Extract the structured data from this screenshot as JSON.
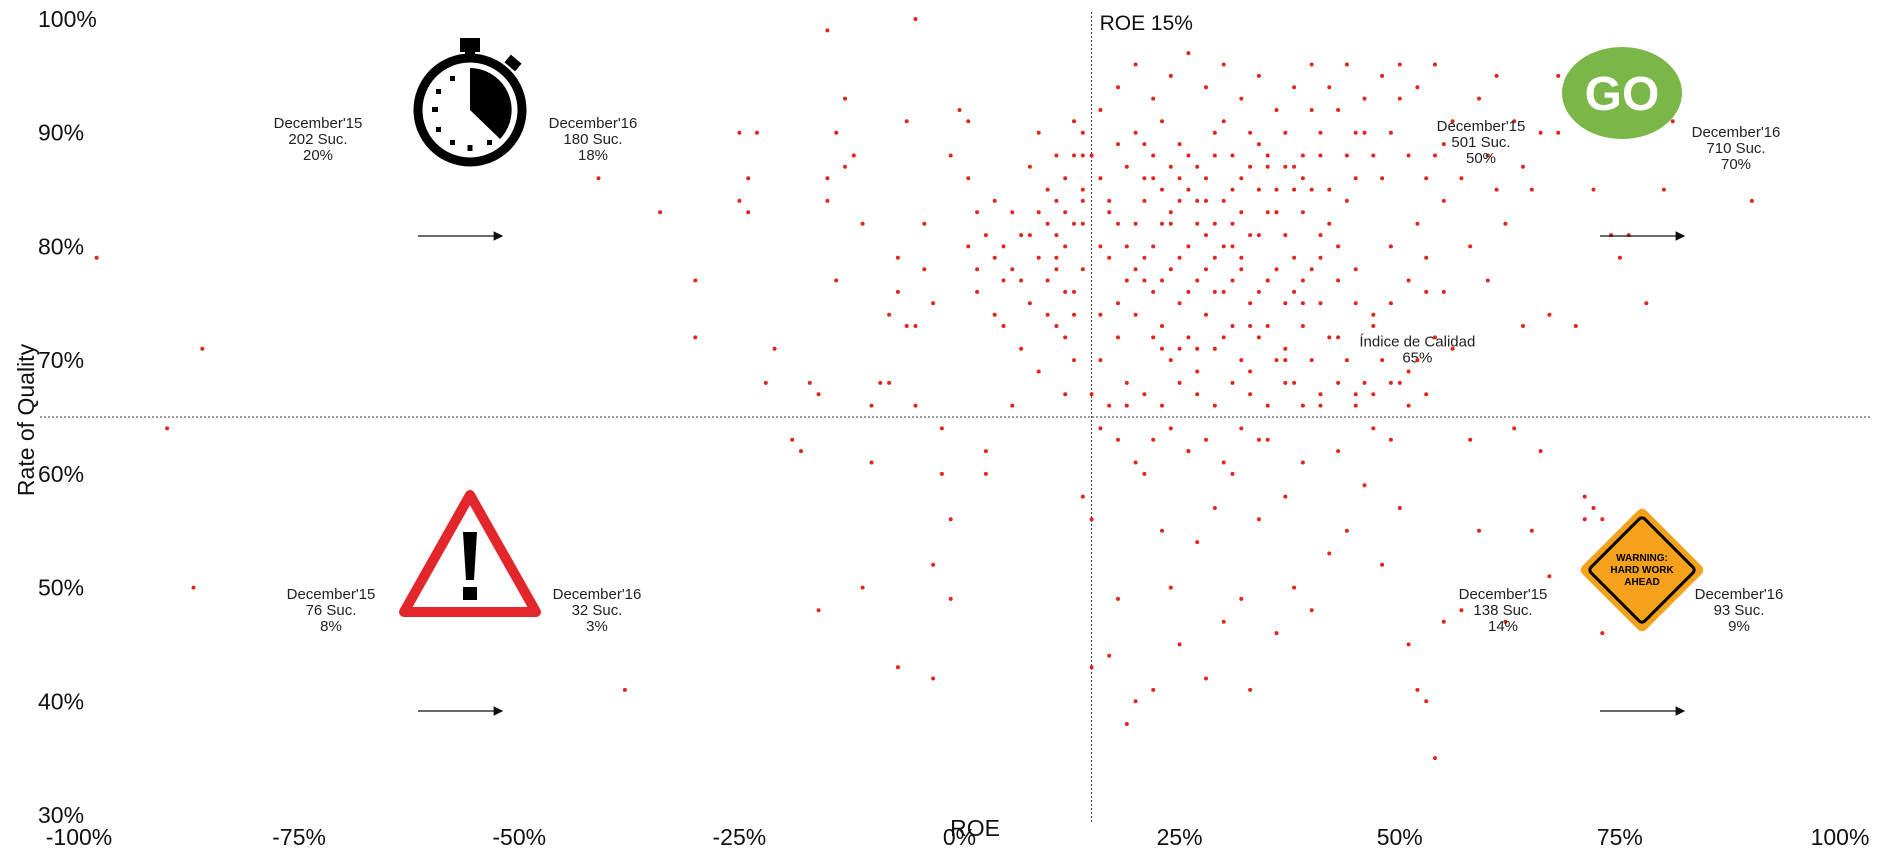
{
  "chart_data": {
    "type": "scatter",
    "xlabel": "ROE",
    "ylabel": "Rate of Quality",
    "xlim": [
      -100,
      100
    ],
    "ylim": [
      30,
      100
    ],
    "x_ticks": [
      "-100%",
      "-75%",
      "-50%",
      "-25%",
      "0%",
      "25%",
      "50%",
      "75%",
      "100%"
    ],
    "x_tick_values": [
      -100,
      -75,
      -50,
      -25,
      0,
      25,
      50,
      75,
      100
    ],
    "y_ticks": [
      "30%",
      "40%",
      "50%",
      "60%",
      "70%",
      "80%",
      "90%",
      "100%"
    ],
    "y_tick_values": [
      30,
      40,
      50,
      60,
      70,
      80,
      90,
      100
    ],
    "grid": false,
    "point_color": "#e0261e",
    "reference_lines": {
      "vertical": {
        "x": 15,
        "label": "ROE 15%"
      },
      "horizontal": {
        "y": 65,
        "label_line1": "Índice de Calidad",
        "label_line2": "65%"
      }
    },
    "quadrants": {
      "top_left": {
        "icon": "stopwatch-icon",
        "before": [
          "December'15",
          "202 Suc.",
          "20%"
        ],
        "after": [
          "December'16",
          "180 Suc.",
          "18%"
        ]
      },
      "top_right": {
        "icon": "go-badge-icon",
        "icon_text": "GO",
        "icon_color": "#7ab648",
        "before": [
          "December'15",
          "501 Suc.",
          "50%"
        ],
        "after": [
          "December'16",
          "710 Suc.",
          "70%"
        ]
      },
      "bottom_left": {
        "icon": "warning-triangle-icon",
        "icon_color": "#e3262b",
        "before": [
          "December'15",
          "76 Suc.",
          "8%"
        ],
        "after": [
          "December'16",
          "32 Suc.",
          "3%"
        ]
      },
      "bottom_right": {
        "icon": "roadwork-sign-icon",
        "icon_text": [
          "WARNING:",
          "HARD WORK",
          "AHEAD"
        ],
        "icon_color": "#f5a11c",
        "before": [
          "December'15",
          "138 Suc.",
          "14%"
        ],
        "after": [
          "December'16",
          "93 Suc.",
          "9%"
        ]
      }
    },
    "points": [
      [
        -98,
        79
      ],
      [
        -86,
        71
      ],
      [
        -90,
        64
      ],
      [
        -87,
        50
      ],
      [
        -38,
        41
      ],
      [
        -30,
        77
      ],
      [
        -30,
        72
      ],
      [
        -34,
        83
      ],
      [
        -41,
        86
      ],
      [
        -25,
        90
      ],
      [
        -24,
        86
      ],
      [
        -25,
        84
      ],
      [
        -24,
        83
      ],
      [
        -23,
        90
      ],
      [
        -22,
        68
      ],
      [
        -21,
        71
      ],
      [
        -18,
        62
      ],
      [
        -19,
        63
      ],
      [
        -17,
        68
      ],
      [
        -16,
        67
      ],
      [
        -15,
        86
      ],
      [
        -15,
        84
      ],
      [
        -14,
        90
      ],
      [
        -14,
        77
      ],
      [
        -13,
        87
      ],
      [
        -12,
        88
      ],
      [
        -11,
        82
      ],
      [
        -10,
        66
      ],
      [
        -10,
        61
      ],
      [
        -9,
        68
      ],
      [
        -8,
        74
      ],
      [
        -8,
        68
      ],
      [
        -7,
        79
      ],
      [
        -7,
        76
      ],
      [
        -6,
        91
      ],
      [
        -6,
        73
      ],
      [
        -5,
        73
      ],
      [
        -5,
        66
      ],
      [
        -4,
        82
      ],
      [
        -4,
        78
      ],
      [
        -3,
        75
      ],
      [
        -3,
        52
      ],
      [
        -2,
        64
      ],
      [
        -2,
        60
      ],
      [
        -1,
        56
      ],
      [
        -1,
        49
      ],
      [
        -7,
        43
      ],
      [
        -3,
        42
      ],
      [
        -5,
        100
      ],
      [
        -15,
        99
      ],
      [
        -11,
        50
      ],
      [
        -16,
        48
      ],
      [
        -13,
        93
      ],
      [
        -1,
        88
      ],
      [
        0,
        92
      ],
      [
        1,
        91
      ],
      [
        1,
        86
      ],
      [
        2,
        83
      ],
      [
        2,
        76
      ],
      [
        3,
        62
      ],
      [
        3,
        60
      ],
      [
        4,
        84
      ],
      [
        4,
        74
      ],
      [
        5,
        80
      ],
      [
        5,
        73
      ],
      [
        6,
        78
      ],
      [
        6,
        66
      ],
      [
        7,
        77
      ],
      [
        7,
        71
      ],
      [
        8,
        87
      ],
      [
        8,
        81
      ],
      [
        9,
        90
      ],
      [
        9,
        69
      ],
      [
        10,
        85
      ],
      [
        10,
        74
      ],
      [
        11,
        88
      ],
      [
        11,
        79
      ],
      [
        12,
        72
      ],
      [
        12,
        67
      ],
      [
        13,
        91
      ],
      [
        13,
        76
      ],
      [
        14,
        84
      ],
      [
        14,
        58
      ],
      [
        15,
        56
      ],
      [
        15,
        43
      ],
      [
        16,
        80
      ],
      [
        16,
        70
      ],
      [
        17,
        83
      ],
      [
        17,
        44
      ],
      [
        18,
        75
      ],
      [
        18,
        49
      ],
      [
        19,
        66
      ],
      [
        19,
        38
      ],
      [
        20,
        90
      ],
      [
        20,
        40
      ],
      [
        21,
        77
      ],
      [
        21,
        60
      ],
      [
        22,
        86
      ],
      [
        22,
        41
      ],
      [
        23,
        73
      ],
      [
        23,
        55
      ],
      [
        24,
        82
      ],
      [
        24,
        50
      ],
      [
        25,
        79
      ],
      [
        25,
        45
      ],
      [
        26,
        88
      ],
      [
        26,
        62
      ],
      [
        27,
        71
      ],
      [
        27,
        54
      ],
      [
        28,
        84
      ],
      [
        28,
        42
      ],
      [
        29,
        76
      ],
      [
        29,
        57
      ],
      [
        30,
        91
      ],
      [
        30,
        47
      ],
      [
        31,
        80
      ],
      [
        31,
        60
      ],
      [
        32,
        86
      ],
      [
        32,
        49
      ],
      [
        33,
        73
      ],
      [
        33,
        41
      ],
      [
        34,
        89
      ],
      [
        34,
        56
      ],
      [
        35,
        77
      ],
      [
        35,
        63
      ],
      [
        36,
        83
      ],
      [
        36,
        46
      ],
      [
        37,
        70
      ],
      [
        37,
        58
      ],
      [
        38,
        87
      ],
      [
        38,
        50
      ],
      [
        39,
        75
      ],
      [
        39,
        61
      ],
      [
        40,
        92
      ],
      [
        40,
        48
      ],
      [
        41,
        81
      ],
      [
        41,
        66
      ],
      [
        42,
        85
      ],
      [
        42,
        53
      ],
      [
        43,
        72
      ],
      [
        43,
        62
      ],
      [
        44,
        88
      ],
      [
        44,
        55
      ],
      [
        45,
        78
      ],
      [
        45,
        67
      ],
      [
        46,
        90
      ],
      [
        46,
        59
      ],
      [
        47,
        74
      ],
      [
        47,
        64
      ],
      [
        48,
        86
      ],
      [
        48,
        52
      ],
      [
        49,
        80
      ],
      [
        49,
        63
      ],
      [
        50,
        93
      ],
      [
        50,
        57
      ],
      [
        51,
        69
      ],
      [
        51,
        45
      ],
      [
        52,
        82
      ],
      [
        52,
        41
      ],
      [
        53,
        76
      ],
      [
        53,
        40
      ],
      [
        54,
        88
      ],
      [
        54,
        35
      ],
      [
        55,
        84
      ],
      [
        55,
        47
      ],
      [
        56,
        91
      ],
      [
        56,
        71
      ],
      [
        57,
        86
      ],
      [
        57,
        48
      ],
      [
        58,
        80
      ],
      [
        58,
        63
      ],
      [
        59,
        93
      ],
      [
        59,
        55
      ],
      [
        60,
        88
      ],
      [
        60,
        77
      ],
      [
        61,
        95
      ],
      [
        61,
        85
      ],
      [
        62,
        82
      ],
      [
        62,
        47
      ],
      [
        63,
        91
      ],
      [
        63,
        64
      ],
      [
        64,
        87
      ],
      [
        64,
        73
      ],
      [
        65,
        85
      ],
      [
        65,
        55
      ],
      [
        66,
        90
      ],
      [
        66,
        62
      ],
      [
        67,
        74
      ],
      [
        67,
        51
      ],
      [
        68,
        90
      ],
      [
        70,
        73
      ],
      [
        71,
        56
      ],
      [
        72,
        85
      ],
      [
        73,
        46
      ],
      [
        74,
        81
      ],
      [
        75,
        79
      ],
      [
        76,
        81
      ],
      [
        78,
        75
      ],
      [
        80,
        85
      ],
      [
        81,
        91
      ],
      [
        90,
        84
      ],
      [
        68,
        95
      ],
      [
        71,
        58
      ],
      [
        73,
        56
      ],
      [
        75,
        53
      ],
      [
        77,
        50
      ],
      [
        72,
        57
      ],
      [
        10,
        82
      ],
      [
        11,
        84
      ],
      [
        12,
        86
      ],
      [
        13,
        88
      ],
      [
        14,
        90
      ],
      [
        12,
        80
      ],
      [
        11,
        78
      ],
      [
        13,
        82
      ],
      [
        14,
        85
      ],
      [
        15,
        88
      ],
      [
        16,
        86
      ],
      [
        17,
        84
      ],
      [
        18,
        82
      ],
      [
        19,
        80
      ],
      [
        20,
        78
      ],
      [
        21,
        84
      ],
      [
        22,
        88
      ],
      [
        23,
        85
      ],
      [
        24,
        87
      ],
      [
        25,
        84
      ],
      [
        26,
        80
      ],
      [
        27,
        82
      ],
      [
        28,
        86
      ],
      [
        29,
        88
      ],
      [
        30,
        84
      ],
      [
        31,
        82
      ],
      [
        32,
        79
      ],
      [
        33,
        81
      ],
      [
        34,
        85
      ],
      [
        35,
        87
      ],
      [
        36,
        85
      ],
      [
        37,
        81
      ],
      [
        38,
        79
      ],
      [
        39,
        83
      ],
      [
        40,
        85
      ],
      [
        41,
        88
      ],
      [
        42,
        82
      ],
      [
        43,
        80
      ],
      [
        44,
        84
      ],
      [
        45,
        86
      ],
      [
        16,
        92
      ],
      [
        18,
        94
      ],
      [
        20,
        96
      ],
      [
        22,
        93
      ],
      [
        24,
        95
      ],
      [
        26,
        97
      ],
      [
        28,
        94
      ],
      [
        30,
        96
      ],
      [
        32,
        93
      ],
      [
        34,
        95
      ],
      [
        36,
        92
      ],
      [
        38,
        94
      ],
      [
        40,
        96
      ],
      [
        42,
        94
      ],
      [
        44,
        96
      ],
      [
        46,
        93
      ],
      [
        48,
        95
      ],
      [
        50,
        96
      ],
      [
        52,
        94
      ],
      [
        54,
        96
      ],
      [
        18,
        89
      ],
      [
        19,
        87
      ],
      [
        21,
        89
      ],
      [
        23,
        91
      ],
      [
        25,
        89
      ],
      [
        27,
        87
      ],
      [
        29,
        90
      ],
      [
        31,
        88
      ],
      [
        33,
        90
      ],
      [
        35,
        88
      ],
      [
        37,
        90
      ],
      [
        39,
        88
      ],
      [
        41,
        90
      ],
      [
        43,
        92
      ],
      [
        45,
        90
      ],
      [
        47,
        88
      ],
      [
        49,
        90
      ],
      [
        51,
        88
      ],
      [
        53,
        86
      ],
      [
        55,
        89
      ],
      [
        17,
        79
      ],
      [
        19,
        77
      ],
      [
        21,
        79
      ],
      [
        23,
        77
      ],
      [
        25,
        75
      ],
      [
        27,
        77
      ],
      [
        29,
        79
      ],
      [
        31,
        77
      ],
      [
        33,
        75
      ],
      [
        35,
        77
      ],
      [
        37,
        75
      ],
      [
        39,
        77
      ],
      [
        41,
        79
      ],
      [
        43,
        77
      ],
      [
        45,
        75
      ],
      [
        47,
        73
      ],
      [
        49,
        75
      ],
      [
        51,
        77
      ],
      [
        53,
        79
      ],
      [
        55,
        76
      ],
      [
        16,
        74
      ],
      [
        18,
        72
      ],
      [
        20,
        74
      ],
      [
        22,
        72
      ],
      [
        24,
        70
      ],
      [
        26,
        72
      ],
      [
        28,
        74
      ],
      [
        30,
        72
      ],
      [
        32,
        70
      ],
      [
        34,
        72
      ],
      [
        36,
        70
      ],
      [
        38,
        68
      ],
      [
        40,
        70
      ],
      [
        42,
        72
      ],
      [
        44,
        70
      ],
      [
        46,
        68
      ],
      [
        48,
        70
      ],
      [
        50,
        68
      ],
      [
        52,
        70
      ],
      [
        54,
        72
      ],
      [
        15,
        67
      ],
      [
        17,
        66
      ],
      [
        19,
        68
      ],
      [
        21,
        67
      ],
      [
        23,
        66
      ],
      [
        25,
        68
      ],
      [
        27,
        67
      ],
      [
        29,
        66
      ],
      [
        31,
        68
      ],
      [
        33,
        67
      ],
      [
        35,
        66
      ],
      [
        37,
        68
      ],
      [
        39,
        66
      ],
      [
        41,
        67
      ],
      [
        43,
        68
      ],
      [
        45,
        66
      ],
      [
        47,
        67
      ],
      [
        49,
        68
      ],
      [
        51,
        66
      ],
      [
        53,
        67
      ],
      [
        16,
        64
      ],
      [
        18,
        63
      ],
      [
        20,
        61
      ],
      [
        22,
        63
      ],
      [
        24,
        64
      ],
      [
        26,
        62
      ],
      [
        28,
        63
      ],
      [
        30,
        61
      ],
      [
        32,
        64
      ],
      [
        34,
        63
      ],
      [
        14,
        78
      ],
      [
        14,
        82
      ],
      [
        14,
        88
      ],
      [
        13,
        74
      ],
      [
        13,
        70
      ],
      [
        12,
        76
      ],
      [
        12,
        83
      ],
      [
        11,
        73
      ],
      [
        11,
        81
      ],
      [
        10,
        77
      ],
      [
        9,
        79
      ],
      [
        9,
        83
      ],
      [
        8,
        75
      ],
      [
        7,
        81
      ],
      [
        6,
        83
      ],
      [
        5,
        77
      ],
      [
        4,
        79
      ],
      [
        3,
        81
      ],
      [
        2,
        78
      ],
      [
        1,
        80
      ],
      [
        20,
        82
      ],
      [
        22,
        80
      ],
      [
        24,
        83
      ],
      [
        26,
        85
      ],
      [
        28,
        81
      ],
      [
        30,
        80
      ],
      [
        32,
        83
      ],
      [
        34,
        81
      ],
      [
        36,
        83
      ],
      [
        38,
        85
      ],
      [
        21,
        86
      ],
      [
        23,
        82
      ],
      [
        25,
        86
      ],
      [
        27,
        84
      ],
      [
        29,
        82
      ],
      [
        31,
        85
      ],
      [
        33,
        87
      ],
      [
        35,
        83
      ],
      [
        37,
        87
      ],
      [
        39,
        86
      ],
      [
        22,
        76
      ],
      [
        24,
        78
      ],
      [
        26,
        76
      ],
      [
        28,
        78
      ],
      [
        30,
        76
      ],
      [
        32,
        78
      ],
      [
        34,
        76
      ],
      [
        36,
        78
      ],
      [
        38,
        76
      ],
      [
        40,
        78
      ],
      [
        23,
        71
      ],
      [
        25,
        71
      ],
      [
        27,
        69
      ],
      [
        29,
        71
      ],
      [
        31,
        73
      ],
      [
        33,
        69
      ],
      [
        35,
        73
      ],
      [
        37,
        71
      ],
      [
        39,
        73
      ],
      [
        41,
        75
      ]
    ]
  }
}
